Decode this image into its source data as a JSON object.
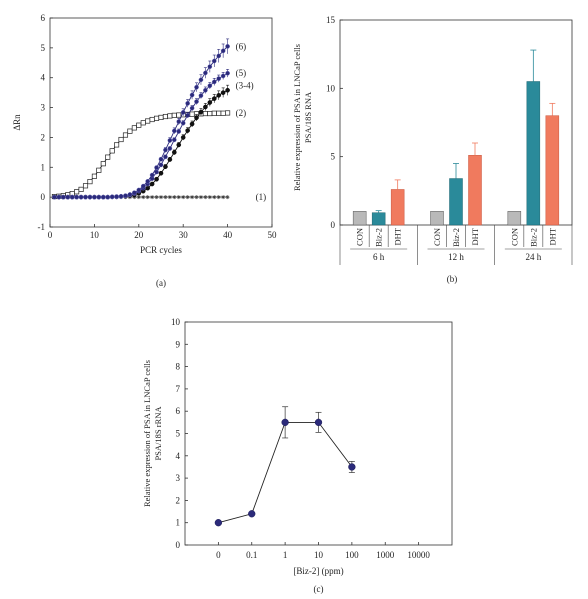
{
  "colors": {
    "blue": "#2b2a7a",
    "teal": "#2a8a9a",
    "salmon": "#f07a5e",
    "gray": "#b9b9b9",
    "axis": "#333333"
  },
  "chart_data": [
    {
      "panel": "(a)",
      "type": "line",
      "xlabel": "PCR cycles",
      "ylabel": "ΔRn",
      "xlim": [
        0,
        50
      ],
      "ylim": [
        -1,
        6
      ],
      "xticks": [
        0,
        10,
        20,
        30,
        40,
        50
      ],
      "yticks": [
        -1,
        0,
        1,
        2,
        3,
        4,
        5,
        6
      ],
      "series": [
        {
          "label": "(1)",
          "marker": "asterisk",
          "x": [
            1,
            2,
            3,
            4,
            5,
            6,
            7,
            8,
            9,
            10,
            11,
            12,
            13,
            14,
            15,
            16,
            17,
            18,
            19,
            20,
            21,
            22,
            23,
            24,
            25,
            26,
            27,
            28,
            29,
            30,
            31,
            32,
            33,
            34,
            35,
            36,
            37,
            38,
            39,
            40
          ],
          "y": [
            0,
            0,
            0,
            0,
            0,
            0,
            0,
            0,
            0,
            0,
            0,
            0,
            0,
            0,
            0,
            0,
            0,
            0,
            0,
            0,
            0,
            0,
            0,
            0,
            0,
            0,
            0,
            0,
            0,
            0,
            0,
            0,
            0,
            0,
            0,
            0,
            0,
            0,
            0,
            0
          ]
        },
        {
          "label": "(2)",
          "marker": "open-square",
          "x": [
            1,
            2,
            3,
            4,
            5,
            6,
            7,
            8,
            9,
            10,
            11,
            12,
            13,
            14,
            15,
            16,
            17,
            18,
            19,
            20,
            21,
            22,
            23,
            24,
            25,
            26,
            27,
            28,
            29,
            30,
            31,
            32,
            33,
            34,
            35,
            36,
            37,
            38,
            39,
            40
          ],
          "y": [
            0.02,
            0.03,
            0.05,
            0.08,
            0.12,
            0.18,
            0.26,
            0.38,
            0.52,
            0.7,
            0.9,
            1.12,
            1.34,
            1.55,
            1.75,
            1.93,
            2.08,
            2.21,
            2.32,
            2.41,
            2.49,
            2.55,
            2.6,
            2.64,
            2.67,
            2.7,
            2.72,
            2.74,
            2.75,
            2.76,
            2.77,
            2.78,
            2.79,
            2.79,
            2.8,
            2.8,
            2.81,
            2.81,
            2.81,
            2.82
          ]
        },
        {
          "label": "(3-4)",
          "marker": "filled-circle",
          "x": [
            1,
            2,
            3,
            4,
            5,
            6,
            7,
            8,
            9,
            10,
            11,
            12,
            13,
            14,
            15,
            16,
            17,
            18,
            19,
            20,
            21,
            22,
            23,
            24,
            25,
            26,
            27,
            28,
            29,
            30,
            31,
            32,
            33,
            34,
            35,
            36,
            37,
            38,
            39,
            40
          ],
          "y": [
            0,
            0,
            0,
            0,
            0,
            0,
            0,
            0,
            0,
            0,
            0,
            0,
            0,
            0.01,
            0.01,
            0.02,
            0.03,
            0.05,
            0.08,
            0.13,
            0.2,
            0.3,
            0.44,
            0.6,
            0.8,
            1.02,
            1.26,
            1.5,
            1.75,
            2,
            2.23,
            2.45,
            2.66,
            2.85,
            3.02,
            3.17,
            3.3,
            3.41,
            3.5,
            3.58
          ],
          "error": [
            0,
            0,
            0,
            0,
            0,
            0,
            0,
            0,
            0,
            0,
            0,
            0,
            0,
            0,
            0,
            0,
            0,
            0,
            0,
            0,
            0,
            0,
            0,
            0.05,
            0.06,
            0.07,
            0.07,
            0.08,
            0.08,
            0.09,
            0.1,
            0.1,
            0.11,
            0.12,
            0.12,
            0.13,
            0.14,
            0.15,
            0.16,
            0.17
          ]
        },
        {
          "label": "(5)",
          "marker": "filled-circle",
          "x": [
            1,
            2,
            3,
            4,
            5,
            6,
            7,
            8,
            9,
            10,
            11,
            12,
            13,
            14,
            15,
            16,
            17,
            18,
            19,
            20,
            21,
            22,
            23,
            24,
            25,
            26,
            27,
            28,
            29,
            30,
            31,
            32,
            33,
            34,
            35,
            36,
            37,
            38,
            39,
            40
          ],
          "y": [
            0,
            0,
            0,
            0,
            0,
            0,
            0,
            0,
            0,
            0,
            0,
            0,
            0,
            0.01,
            0.01,
            0.02,
            0.04,
            0.07,
            0.12,
            0.2,
            0.3,
            0.44,
            0.62,
            0.84,
            1.08,
            1.35,
            1.63,
            1.92,
            2.2,
            2.48,
            2.74,
            2.98,
            3.2,
            3.4,
            3.58,
            3.73,
            3.86,
            3.97,
            4.06,
            4.15
          ],
          "error": [
            0,
            0,
            0,
            0,
            0,
            0,
            0,
            0,
            0,
            0,
            0,
            0,
            0,
            0,
            0,
            0,
            0,
            0,
            0,
            0,
            0,
            0,
            0,
            0.04,
            0.05,
            0.06,
            0.06,
            0.07,
            0.08,
            0.08,
            0.09,
            0.09,
            0.1,
            0.1,
            0.11,
            0.11,
            0.12,
            0.12,
            0.12,
            0.13
          ]
        },
        {
          "label": "(6)",
          "marker": "filled-circle",
          "x": [
            1,
            2,
            3,
            4,
            5,
            6,
            7,
            8,
            9,
            10,
            11,
            12,
            13,
            14,
            15,
            16,
            17,
            18,
            19,
            20,
            21,
            22,
            23,
            24,
            25,
            26,
            27,
            28,
            29,
            30,
            31,
            32,
            33,
            34,
            35,
            36,
            37,
            38,
            39,
            40
          ],
          "y": [
            0,
            0,
            0,
            0,
            0,
            0,
            0,
            0,
            0,
            0,
            0,
            0,
            0,
            0.01,
            0.02,
            0.03,
            0.05,
            0.09,
            0.15,
            0.24,
            0.37,
            0.53,
            0.74,
            0.99,
            1.27,
            1.58,
            1.9,
            2.22,
            2.53,
            2.84,
            3.14,
            3.42,
            3.68,
            3.93,
            4.16,
            4.37,
            4.56,
            4.73,
            4.9,
            5.05
          ],
          "error": [
            0,
            0,
            0,
            0,
            0,
            0,
            0,
            0,
            0,
            0,
            0,
            0,
            0,
            0,
            0,
            0,
            0,
            0,
            0,
            0,
            0,
            0,
            0,
            0.05,
            0.06,
            0.08,
            0.09,
            0.1,
            0.11,
            0.12,
            0.13,
            0.14,
            0.15,
            0.17,
            0.18,
            0.19,
            0.2,
            0.22,
            0.23,
            0.25
          ]
        }
      ]
    },
    {
      "panel": "(b)",
      "type": "bar",
      "ylabel": "Relative expression of PSA in LNCaP cells PSA/18S RNA",
      "ylim": [
        0,
        15
      ],
      "yticks": [
        0,
        5,
        10,
        15
      ],
      "groups": [
        "6 h",
        "12 h",
        "24 h"
      ],
      "categories": [
        "CON",
        "Biz-2",
        "DHT"
      ],
      "values": [
        [
          1.0,
          0.9,
          2.6
        ],
        [
          1.0,
          3.4,
          5.1
        ],
        [
          1.0,
          10.5,
          8.0
        ]
      ],
      "errors": [
        [
          0,
          0.15,
          0.7
        ],
        [
          0,
          1.1,
          0.9
        ],
        [
          0,
          2.3,
          0.9
        ]
      ]
    },
    {
      "panel": "(c)",
      "type": "line",
      "xlabel": "[Biz-2] (ppm)",
      "ylabel": "Relative expression of PSA in LNCaP cells PSA/18S rRNA",
      "ylim": [
        0,
        10
      ],
      "yticks": [
        0,
        1,
        2,
        3,
        4,
        5,
        6,
        7,
        8,
        9,
        10
      ],
      "xticks": [
        "0",
        "0.1",
        "1",
        "10",
        "100",
        "1000",
        "10000"
      ],
      "x": [
        "0",
        "0.1",
        "1",
        "10",
        "100"
      ],
      "y": [
        1.0,
        1.4,
        5.5,
        5.5,
        3.5
      ],
      "error": [
        0,
        0,
        0.7,
        0.45,
        0.25
      ]
    }
  ]
}
